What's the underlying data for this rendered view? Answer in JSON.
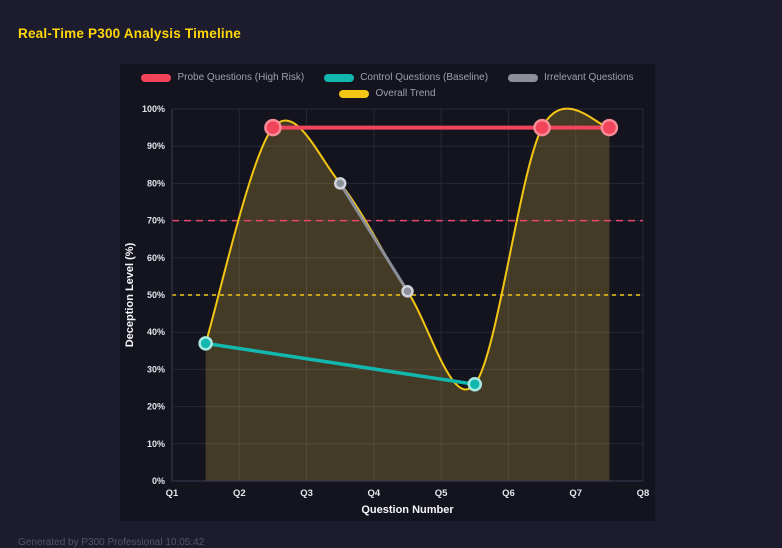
{
  "page": {
    "title": "Real-Time P300 Analysis Timeline",
    "footer": "Generated by P300 Professional  10:05:42"
  },
  "chart_data": {
    "type": "line",
    "title": "Real-Time P300 Analysis Timeline",
    "xlabel": "Question Number",
    "ylabel": "Deception Level (%)",
    "x_ticks": [
      "Q1",
      "Q2",
      "Q3",
      "Q4",
      "Q5",
      "Q6",
      "Q7",
      "Q8"
    ],
    "x_range": [
      1,
      8
    ],
    "ylim": [
      0,
      100
    ],
    "y_tick_step": 10,
    "y_tick_suffix": "%",
    "grid": true,
    "legend_position": "top",
    "series": [
      {
        "name": "Probe Questions (High Risk)",
        "color": "#f2455c",
        "ring_color": "#f78b97",
        "points": [
          [
            2.5,
            95
          ],
          [
            6.5,
            95
          ],
          [
            7.5,
            95
          ]
        ],
        "marker_radius": 7.5,
        "line_width": 4,
        "smooth": false
      },
      {
        "name": "Control Questions (Baseline)",
        "color": "#12b8ae",
        "ring_color": "#a7e8e3",
        "points": [
          [
            1.5,
            37
          ],
          [
            5.5,
            26
          ]
        ],
        "marker_radius": 6,
        "line_width": 3.5,
        "smooth": false
      },
      {
        "name": "Irrelevant Questions",
        "color": "#8a8f99",
        "ring_color": "#d0d4da",
        "points": [
          [
            3.5,
            80
          ],
          [
            4.5,
            51
          ]
        ],
        "marker_radius": 5,
        "line_width": 3,
        "smooth": false
      },
      {
        "name": "Overall Trend",
        "color": "#f3c614",
        "points": [
          [
            1.5,
            37
          ],
          [
            2.5,
            95
          ],
          [
            3.5,
            80
          ],
          [
            4.5,
            51
          ],
          [
            5.5,
            26
          ],
          [
            6.5,
            95
          ],
          [
            7.5,
            95
          ]
        ],
        "marker_radius": 0,
        "line_width": 2,
        "smooth": true,
        "area_fill": "rgba(240, 200, 70, 0.22)"
      }
    ],
    "thresholds": [
      {
        "value": 70,
        "color": "#e8446a",
        "dash": "7 5"
      },
      {
        "value": 50,
        "color": "#f3c614",
        "dash": "4 4"
      }
    ],
    "style": {
      "grid_color": "#27273b",
      "axis_color": "#3a3a52",
      "tick_color": "#e2e4ea",
      "axis_title_color": "#f4f5f8",
      "panel_bg": "#14141f"
    }
  }
}
